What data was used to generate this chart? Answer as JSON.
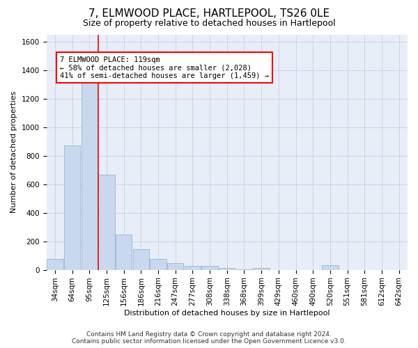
{
  "title": "7, ELMWOOD PLACE, HARTLEPOOL, TS26 0LE",
  "subtitle": "Size of property relative to detached houses in Hartlepool",
  "xlabel": "Distribution of detached houses by size in Hartlepool",
  "ylabel": "Number of detached properties",
  "footer_line1": "Contains HM Land Registry data © Crown copyright and database right 2024.",
  "footer_line2": "Contains public sector information licensed under the Open Government Licence v3.0.",
  "categories": [
    "34sqm",
    "64sqm",
    "95sqm",
    "125sqm",
    "156sqm",
    "186sqm",
    "216sqm",
    "247sqm",
    "277sqm",
    "308sqm",
    "338sqm",
    "368sqm",
    "399sqm",
    "429sqm",
    "460sqm",
    "490sqm",
    "520sqm",
    "551sqm",
    "581sqm",
    "612sqm",
    "642sqm"
  ],
  "values": [
    75,
    875,
    1325,
    670,
    245,
    145,
    75,
    45,
    25,
    25,
    15,
    5,
    15,
    0,
    0,
    0,
    30,
    0,
    0,
    0,
    0
  ],
  "bar_color": "#c8d8ee",
  "bar_edge_color": "#9ab4d4",
  "property_line_x": 2.5,
  "annotation_text_line1": "7 ELMWOOD PLACE: 119sqm",
  "annotation_text_line2": "← 58% of detached houses are smaller (2,028)",
  "annotation_text_line3": "41% of semi-detached houses are larger (1,459) →",
  "ylim": [
    0,
    1650
  ],
  "yticks": [
    0,
    200,
    400,
    600,
    800,
    1000,
    1200,
    1400,
    1600
  ],
  "background_color": "#ffffff",
  "axes_bg_color": "#e8eef8",
  "grid_color": "#c0c8d8",
  "title_fontsize": 11,
  "subtitle_fontsize": 9,
  "axis_label_fontsize": 8,
  "tick_fontsize": 7.5,
  "annotation_fontsize": 7.5,
  "footer_fontsize": 6.5
}
